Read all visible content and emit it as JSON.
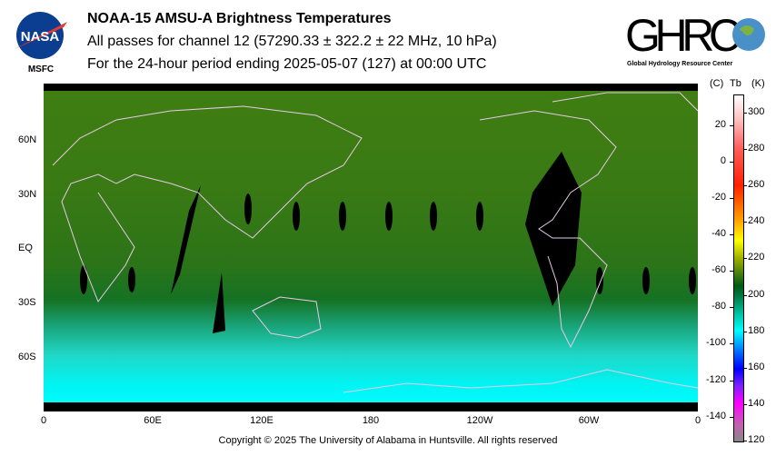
{
  "header": {
    "title": "NOAA-15 AMSU-A Brightness Temperatures",
    "subtitle": "All passes for channel 12 (57290.33 ± 322.2 ± 22 MHz, 10 hPa)",
    "period": "For the 24-hour period ending 2025-05-07 (127) at 00:00 UTC"
  },
  "logos": {
    "nasa": "NASA",
    "nasa_sub": "MSFC",
    "ghrc": "GHRC",
    "ghrc_sub": "Global Hydrology Resource Center"
  },
  "map": {
    "lat_labels": [
      "60N",
      "30N",
      "EQ",
      "30S",
      "60S"
    ],
    "lon_labels": [
      "0",
      "60E",
      "120E",
      "180",
      "120W",
      "60W",
      "0"
    ]
  },
  "colorbar": {
    "header_c": "(C)",
    "header_tb": "Tb",
    "header_k": "(K)",
    "kelvin_labels": [
      "300",
      "280",
      "260",
      "240",
      "220",
      "200",
      "180",
      "160",
      "140",
      "120"
    ],
    "celsius_labels": [
      "20",
      "0",
      "-20",
      "-40",
      "-60",
      "-80",
      "-100",
      "-120",
      "-140"
    ],
    "range_k": [
      120,
      310
    ]
  },
  "footer": {
    "copyright": "Copyright © 2025 The University of Alabama in Huntsville.  All rights reserved"
  }
}
